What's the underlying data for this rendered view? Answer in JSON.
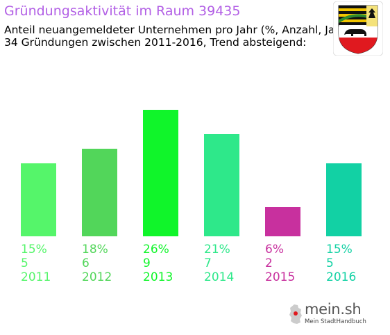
{
  "header": {
    "title": "Gründungsaktivität im Raum 39435",
    "title_color": "#b25fe5",
    "subtitle_line1": "Anteil neuangemeldeter Unternehmen pro Jahr (%, Anzahl, Jahr)",
    "subtitle_line2": "34 Gründungen zwischen 2011-2016, Trend absteigend:"
  },
  "coat_of_arms": {
    "icon": "coat-of-arms-icon"
  },
  "chart_data": {
    "type": "bar",
    "categories": [
      "2011",
      "2012",
      "2013",
      "2014",
      "2015",
      "2016"
    ],
    "percents": [
      "15%",
      "18%",
      "26%",
      "21%",
      "6%",
      "15%"
    ],
    "counts": [
      "5",
      "6",
      "9",
      "7",
      "2",
      "5"
    ],
    "values": [
      15,
      18,
      26,
      21,
      6,
      15
    ],
    "colors": [
      "#55f56a",
      "#52d65a",
      "#10f52a",
      "#2ee88a",
      "#c8309e",
      "#12d1a4"
    ],
    "ylim": [
      0,
      26
    ],
    "grid": false,
    "title": "",
    "xlabel": "",
    "ylabel": ""
  },
  "footer": {
    "logo_text": "mein.sh",
    "logo_subtext": "Mein StadtHandbuch",
    "logo_icon": "germany-map-icon"
  }
}
